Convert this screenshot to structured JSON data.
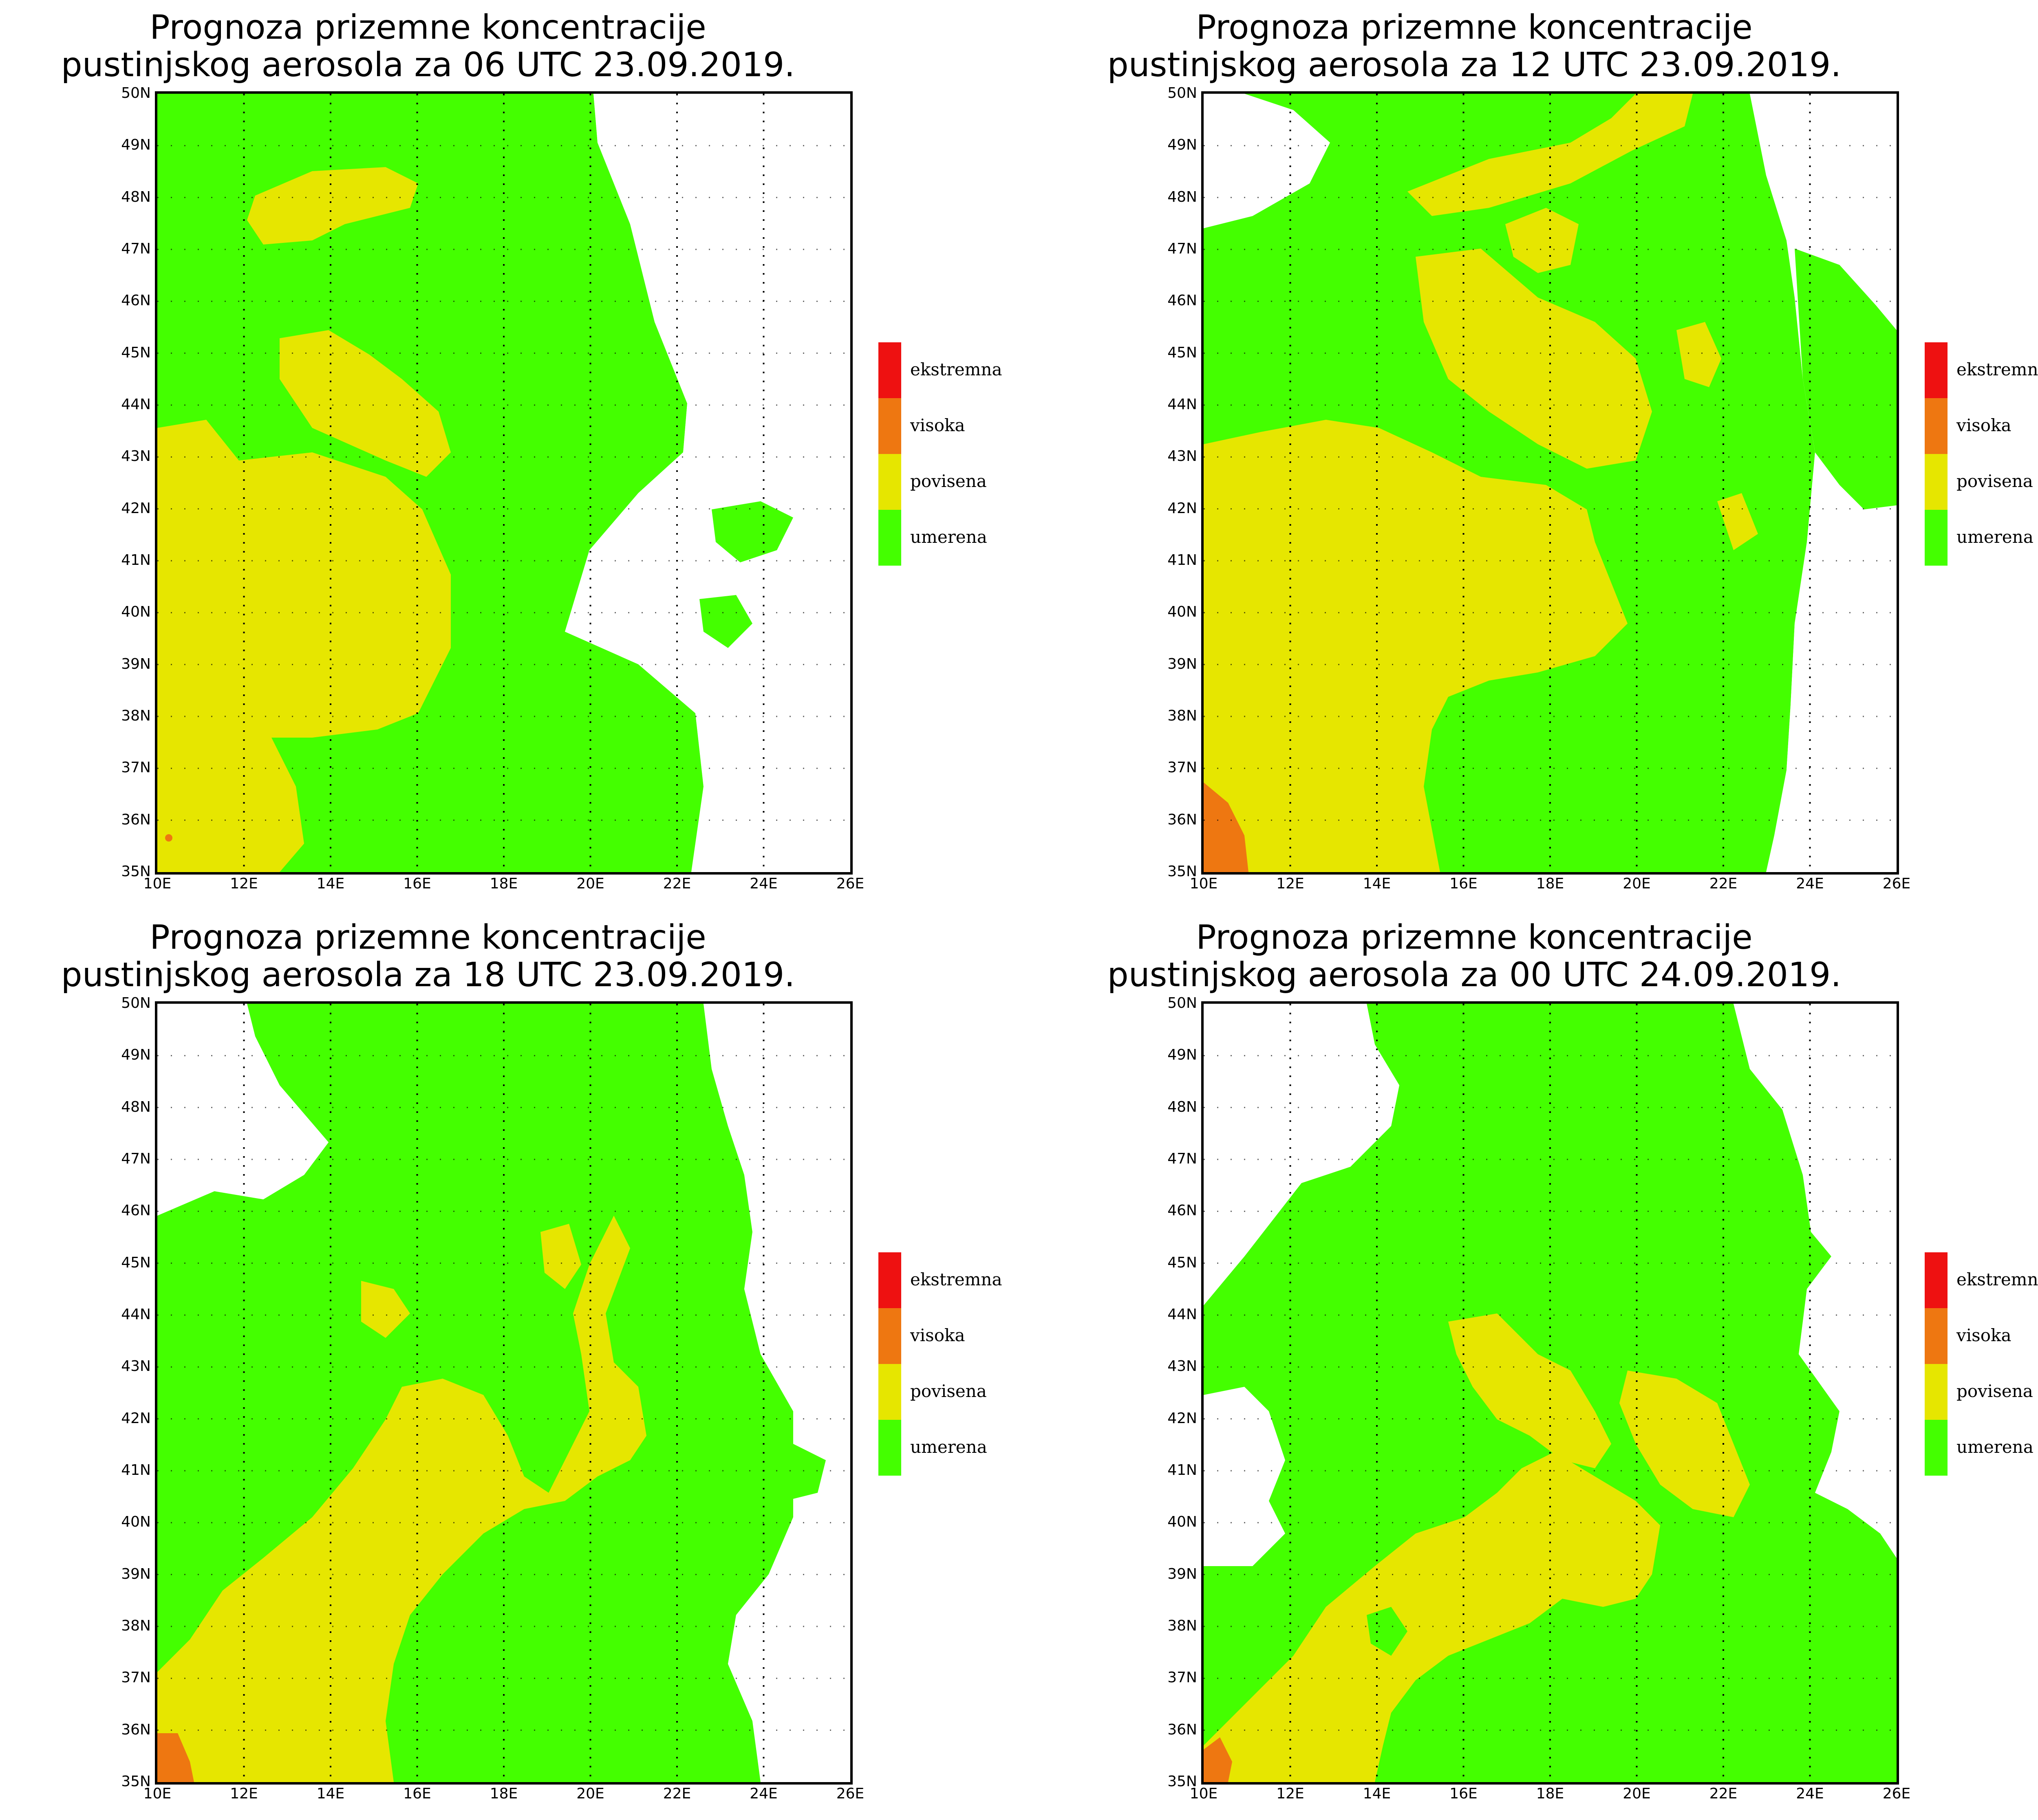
{
  "colors": {
    "ekstremna": "#ee1111",
    "visoka": "#ee7711",
    "povisena": "#e6e600",
    "umerena": "#44ff00",
    "land_none": "#ffffff",
    "border": "#000000"
  },
  "legend": [
    {
      "label": "ekstremna",
      "color_key": "ekstremna"
    },
    {
      "label": "visoka",
      "color_key": "visoka"
    },
    {
      "label": "povisena",
      "color_key": "povisena"
    },
    {
      "label": "umerena",
      "color_key": "umerena"
    }
  ],
  "axes": {
    "lat_labels": [
      "50N",
      "49N",
      "48N",
      "47N",
      "46N",
      "45N",
      "44N",
      "43N",
      "42N",
      "41N",
      "40N",
      "39N",
      "38N",
      "37N",
      "36N",
      "35N"
    ],
    "lon_labels": [
      "10E",
      "12E",
      "14E",
      "16E",
      "18E",
      "20E",
      "22E",
      "24E",
      "26E"
    ],
    "lat_range": [
      35,
      50
    ],
    "lon_range": [
      10,
      26
    ],
    "grid": "dotted"
  },
  "panels": [
    {
      "title_line1": "Prognoza prizemne koncentracije",
      "title_line2": "pustinjskog aerosola za 06 UTC 23.09.2019."
    },
    {
      "title_line1": "Prognoza prizemne koncentracije",
      "title_line2": "pustinjskog aerosola za 12 UTC 23.09.2019."
    },
    {
      "title_line1": "Prognoza prizemne koncentracije",
      "title_line2": "pustinjskog aerosola za 18 UTC 23.09.2019."
    },
    {
      "title_line1": "Prognoza prizemne koncentracije",
      "title_line2": "pustinjskog aerosola za 00 UTC 24.09.2019."
    }
  ]
}
